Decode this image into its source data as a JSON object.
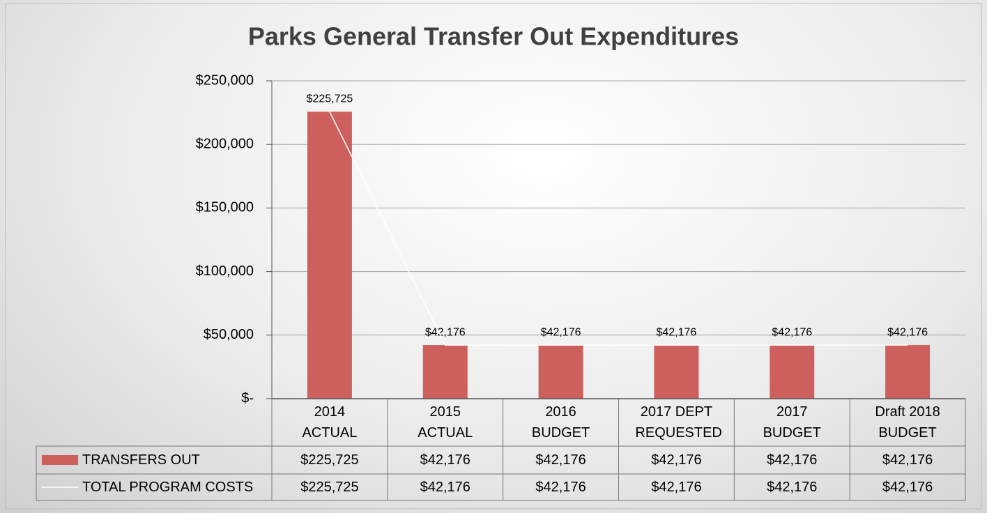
{
  "chart_data": {
    "type": "bar",
    "title": "Parks General Transfer Out Expenditures",
    "categories": [
      "2014 ACTUAL",
      "2015 ACTUAL",
      "2016 BUDGET",
      "2017 DEPT REQUESTED",
      "2017 BUDGET",
      "Draft 2018 BUDGET"
    ],
    "series": [
      {
        "name": "TRANSFERS OUT",
        "type": "bar",
        "color": "#cd605d",
        "values": [
          225725,
          42176,
          42176,
          42176,
          42176,
          42176
        ],
        "value_labels": [
          "$225,725",
          "$42,176",
          "$42,176",
          "$42,176",
          "$42,176",
          "$42,176"
        ]
      },
      {
        "name": "TOTAL PROGRAM COSTS",
        "type": "line",
        "color": "#ffffff",
        "values": [
          225725,
          42176,
          42176,
          42176,
          42176,
          42176
        ],
        "value_labels": [
          "$225,725",
          "$42,176",
          "$42,176",
          "$42,176",
          "$42,176",
          "$42,176"
        ]
      }
    ],
    "ylim": [
      0,
      250000
    ],
    "yticks": [
      {
        "value": 0,
        "label": "$-"
      },
      {
        "value": 50000,
        "label": "$50,000"
      },
      {
        "value": 100000,
        "label": "$100,000"
      },
      {
        "value": 150000,
        "label": "$150,000"
      },
      {
        "value": 200000,
        "label": "$200,000"
      },
      {
        "value": 250000,
        "label": "$250,000"
      }
    ],
    "grid": true
  }
}
